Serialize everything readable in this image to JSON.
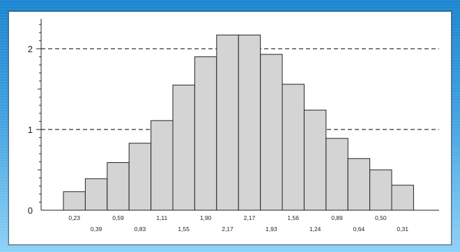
{
  "chart_data": {
    "type": "bar",
    "title": "",
    "xlabel": "",
    "ylabel": "",
    "ylim": [
      0,
      2.3
    ],
    "y_ticks": [
      "0",
      "1",
      "2"
    ],
    "reference_lines": [
      1,
      2
    ],
    "values": [
      0.23,
      0.39,
      0.59,
      0.83,
      1.11,
      1.55,
      1.9,
      2.17,
      2.17,
      1.93,
      1.56,
      1.24,
      0.89,
      0.64,
      0.5,
      0.31
    ],
    "labels": [
      "0,23",
      "0,39",
      "0,59",
      "0,83",
      "1,11",
      "1,55",
      "1,90",
      "2,17",
      "2,17",
      "1,93",
      "1,56",
      "1,24",
      "0,89",
      "0,64",
      "0,50",
      "0,31"
    ],
    "colors": {
      "bar_fill": "#d4d4d4",
      "bar_stroke": "#222222"
    }
  }
}
